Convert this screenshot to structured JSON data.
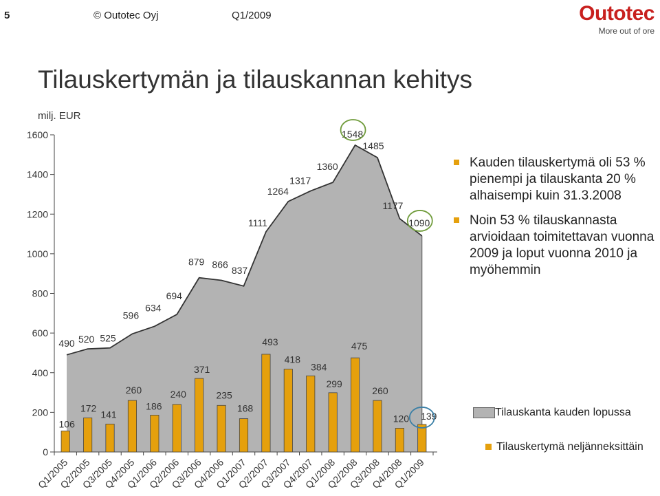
{
  "header": {
    "slide_number": "5",
    "copyright": "© Outotec Oyj",
    "period": "Q1/2009",
    "logo_name": "Outotec",
    "logo_tagline": "More out of ore"
  },
  "title": "Tilauskertymän ja tilauskannan kehitys",
  "bullets": [
    "Kauden tilauskertymä oli 53 % pienempi ja tilauskanta 20 % alhaisempi kuin 31.3.2008",
    "Noin 53 % tilauskannasta arvioidaan toimitettavan vuonna 2009 ja loput vuonna 2010 ja myöhemmin"
  ],
  "legend": {
    "backlog": "Tilauskanta kauden lopussa",
    "orders": "Tilauskertymä neljänneksittäin"
  },
  "colors": {
    "area_fill": "#b3b3b3",
    "area_line": "#333333",
    "bar_fill": "#e5a00d",
    "bar_border": "#444444",
    "highlight_green": "#6f9b3a",
    "highlight_blue": "#3a7fa6",
    "accent_red": "#c8201e"
  },
  "chart_data": {
    "type": "bar",
    "ylabel": "milj. EUR",
    "ylim": [
      0,
      1600
    ],
    "yticks": [
      0,
      200,
      400,
      600,
      800,
      1000,
      1200,
      1400,
      1600
    ],
    "categories": [
      "Q1/2005",
      "Q2/2005",
      "Q3/2005",
      "Q4/2005",
      "Q1/2006",
      "Q2/2006",
      "Q3/2006",
      "Q4/2006",
      "Q1/2007",
      "Q2/2007",
      "Q3/2007",
      "Q4/2007",
      "Q1/2008",
      "Q2/2008",
      "Q3/2008",
      "Q4/2008",
      "Q1/2009"
    ],
    "series": [
      {
        "name": "Tilauskanta kauden lopussa",
        "type": "area",
        "values": [
          490,
          520,
          525,
          596,
          634,
          694,
          879,
          866,
          837,
          1111,
          1264,
          1317,
          1360,
          1548,
          1485,
          1177,
          1090
        ]
      },
      {
        "name": "Tilauskertymä neljänneksittäin",
        "type": "bar",
        "values": [
          106,
          172,
          141,
          260,
          186,
          240,
          371,
          235,
          168,
          493,
          418,
          384,
          299,
          475,
          260,
          120,
          139
        ]
      }
    ],
    "highlights": [
      {
        "series": "Tilauskanta kauden lopussa",
        "category": "Q2/2008",
        "color": "green"
      },
      {
        "series": "Tilauskanta kauden lopussa",
        "category": "Q1/2009",
        "color": "green"
      },
      {
        "series": "Tilauskertymä neljänneksittäin",
        "category": "Q1/2009",
        "color": "blue"
      }
    ]
  }
}
